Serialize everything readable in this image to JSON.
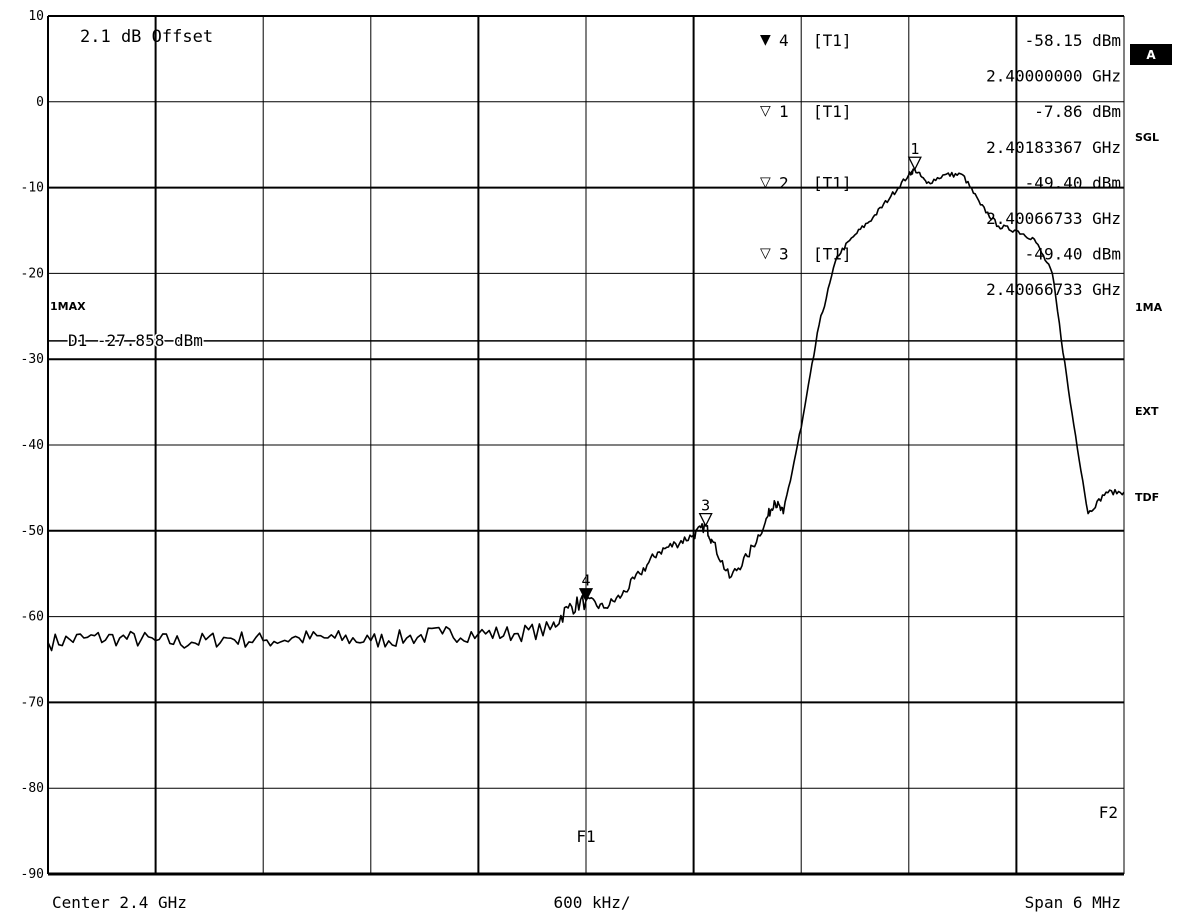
{
  "chart_data": {
    "type": "line",
    "title": "",
    "xlabel": "",
    "ylabel": "",
    "x_unit": "GHz",
    "y_unit": "dBm",
    "xlim": [
      2.397,
      2.403
    ],
    "ylim": [
      -90,
      10
    ],
    "y_ticks": [
      10,
      0,
      -10,
      -20,
      -30,
      -40,
      -50,
      -60,
      -70,
      -80,
      -90
    ],
    "y_tick_labels": [
      "10",
      "0",
      "-10",
      "-20",
      "-30",
      "-40",
      "-50",
      "-60",
      "-70",
      "-80",
      "-90"
    ],
    "grid": true,
    "bottom_labels": {
      "center": "Center 2.4 GHz",
      "per_div": "600 kHz/",
      "span": "Span 6 MHz"
    },
    "offset_label": "2.1 dB Offset",
    "trace_mode_label": "1MAX",
    "display_line": {
      "label": "D1 -27.858 dBm",
      "value": -27.858
    },
    "right_annotations": {
      "a_badge": "A",
      "sgl": "SGL",
      "ma": "1MA",
      "ext": "EXT",
      "tdf": "TDF"
    },
    "frequency_lines": [
      {
        "label": "F1",
        "x": 2.4
      },
      {
        "label": "F2",
        "x": 2.403
      }
    ],
    "marker_table": [
      {
        "symbol": "▼",
        "number": "4",
        "trace": "[T1]",
        "level": "-58.15 dBm",
        "freq": "2.40000000 GHz"
      },
      {
        "symbol": "▽",
        "number": "1",
        "trace": "[T1]",
        "level": "-7.86 dBm",
        "freq": "2.40183367 GHz"
      },
      {
        "symbol": "▽",
        "number": "2",
        "trace": "[T1]",
        "level": "-49.40 dBm",
        "freq": "2.40066733 GHz"
      },
      {
        "symbol": "▽",
        "number": "3",
        "trace": "[T1]",
        "level": "-49.40 dBm",
        "freq": "2.40066733 GHz"
      }
    ],
    "markers": [
      {
        "label": "1",
        "x": 2.40183367,
        "y": -7.86,
        "filled": false
      },
      {
        "label": "3",
        "x": 2.40066733,
        "y": -49.4,
        "filled": false
      },
      {
        "label": "4",
        "x": 2.4,
        "y": -58.15,
        "filled": true
      }
    ],
    "series": [
      {
        "x": [
          2.397,
          2.3972,
          2.3974,
          2.3976,
          2.3978,
          2.398,
          2.3982,
          2.3984,
          2.3986,
          2.3988,
          2.399,
          2.3992,
          2.3994,
          2.3996,
          2.3998,
          2.3999,
          2.4,
          2.4001,
          2.4002,
          2.4003,
          2.4004,
          2.4005,
          2.4006,
          2.40066733,
          2.4007,
          2.4008,
          2.4009,
          2.401,
          2.40105,
          2.4011,
          2.4012,
          2.4013,
          2.4014,
          2.4015,
          2.4016,
          2.4017,
          2.4018,
          2.40183367,
          2.4019,
          2.402,
          2.4021,
          2.4022,
          2.4023,
          2.4024,
          2.4025,
          2.4026,
          2.4027,
          2.4028,
          2.4029,
          2.403
        ],
        "y": [
          -63,
          -62.5,
          -62.5,
          -62.8,
          -63,
          -62.5,
          -62.8,
          -62.5,
          -62.5,
          -62.8,
          -62.5,
          -62,
          -62,
          -62,
          -61.5,
          -59,
          -58.15,
          -59,
          -57.5,
          -55,
          -52.5,
          -51.5,
          -50.5,
          -49.4,
          -51,
          -55.5,
          -53,
          -49,
          -46.5,
          -48,
          -38,
          -26,
          -18,
          -15.5,
          -13.5,
          -11,
          -8.5,
          -7.86,
          -9.5,
          -8.5,
          -8.5,
          -12,
          -14.5,
          -15,
          -16,
          -20,
          -35,
          -48,
          -45.5,
          -45.5
        ]
      }
    ]
  }
}
